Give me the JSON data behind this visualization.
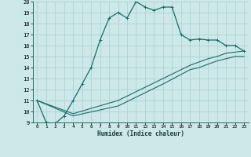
{
  "xlabel": "Humidex (Indice chaleur)",
  "xlim": [
    -0.5,
    23.5
  ],
  "ylim": [
    9,
    20
  ],
  "xticks": [
    0,
    1,
    2,
    3,
    4,
    5,
    6,
    7,
    8,
    9,
    10,
    11,
    12,
    13,
    14,
    15,
    16,
    17,
    18,
    19,
    20,
    21,
    22,
    23
  ],
  "yticks": [
    9,
    10,
    11,
    12,
    13,
    14,
    15,
    16,
    17,
    18,
    19,
    20
  ],
  "bg_color": "#cce8e8",
  "grid_color": "#aacfcf",
  "line_color": "#1a6b6b",
  "line1_x": [
    0,
    1,
    2,
    3,
    4,
    5,
    6,
    7,
    8,
    9,
    10,
    11,
    12,
    13,
    14,
    15,
    16,
    17,
    18,
    19,
    20,
    21,
    22,
    23
  ],
  "line1_y": [
    11,
    9,
    8.9,
    9.6,
    11,
    12.5,
    14.0,
    16.5,
    18.5,
    19.0,
    18.5,
    20.0,
    19.5,
    19.2,
    19.5,
    19.5,
    17.0,
    16.5,
    16.6,
    16.5,
    16.5,
    16.0,
    16.0,
    15.5
  ],
  "line2_x": [
    0,
    4,
    9,
    14,
    17,
    18,
    19,
    20,
    21,
    22,
    23
  ],
  "line2_y": [
    11,
    9.8,
    11.0,
    13.0,
    14.2,
    14.5,
    14.8,
    15.0,
    15.3,
    15.4,
    15.5
  ],
  "line3_x": [
    0,
    4,
    9,
    14,
    17,
    18,
    19,
    20,
    21,
    22,
    23
  ],
  "line3_y": [
    11,
    9.6,
    10.5,
    12.5,
    13.8,
    14.0,
    14.3,
    14.6,
    14.8,
    15.0,
    15.0
  ]
}
